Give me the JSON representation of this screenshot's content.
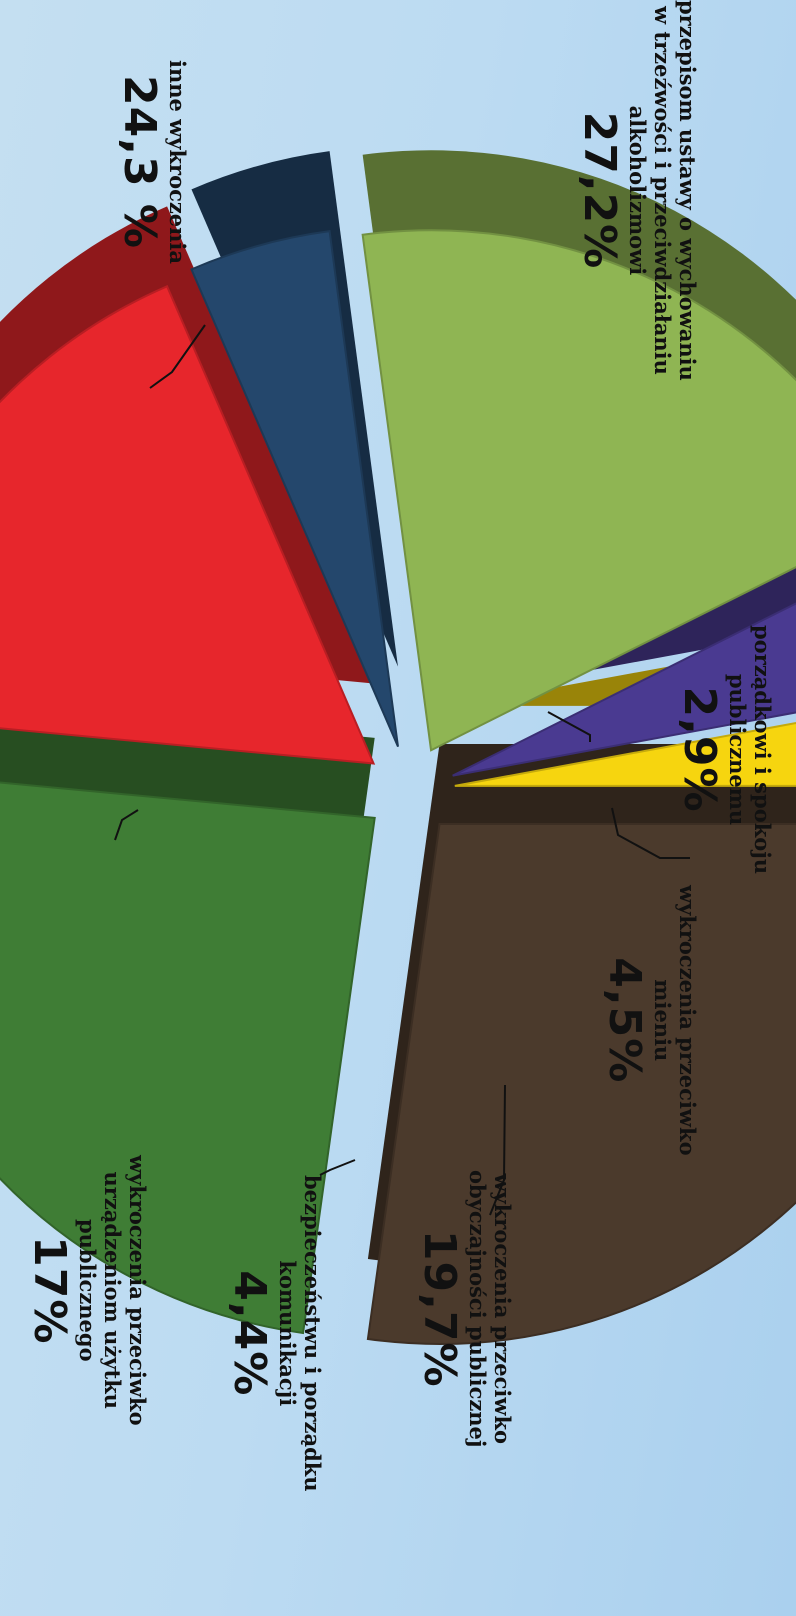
{
  "chart_data": {
    "type": "pie",
    "title": "",
    "slices": [
      {
        "label": "przepisom ustawy o wychowaniu w trzeźwości i przeciwdziałaniu alkoholizmowi",
        "value_text": "27,2%",
        "value": 27.2,
        "color": "#4b3a2c"
      },
      {
        "label": "inne wykroczenia",
        "value_text": "24,3 %",
        "value": 24.3,
        "color": "#3f7d35"
      },
      {
        "label": "wykroczenia przeciwko urządzeniom użytku publicznego",
        "value_text": "17%",
        "value": 17.0,
        "color": "#e7262c"
      },
      {
        "label": "bezpieczeństwu i porządku komunikacji",
        "value_text": "4,4%",
        "value": 4.4,
        "color": "#24476c"
      },
      {
        "label": "wykroczenia przeciwko obyczajności publicznej",
        "value_text": "19,7%",
        "value": 19.7,
        "color": "#8fb553"
      },
      {
        "label": "wykroczenia przeciwko mieniu",
        "value_text": "4,5%",
        "value": 4.5,
        "color": "#4a3a91"
      },
      {
        "label": "porządkowi i spokoju publicznemu",
        "value_text": "2,9%",
        "value": 2.9,
        "color": "#f6d50f"
      }
    ]
  },
  "labels": {
    "alkohol": {
      "name": "przepisom ustawy o wychowaniu\nw trzeźwości i przeciwdziałaniu\nalkoholizmowi",
      "pct": "27,2%"
    },
    "inne": {
      "name": "inne wykroczenia",
      "pct": "24,3 %"
    },
    "porzadek": {
      "name": "porządkowi i spokoju\npublicznemu",
      "pct": "2,9%"
    },
    "mienie": {
      "name": "wykroczenia przeciwko\nmieniu",
      "pct": "4,5%"
    },
    "obyczaj": {
      "name": "wykroczenia przeciwko\nobyczajności publicznej",
      "pct": "19,7%"
    },
    "komunikacja": {
      "name": "bezpieczeństwu i porządku\nkomunikacji",
      "pct": "4,4%"
    },
    "urzadzenia": {
      "name": "wykroczenia przeciwko\nurządzeniom użytku\npublicznego",
      "pct": "17%"
    }
  }
}
